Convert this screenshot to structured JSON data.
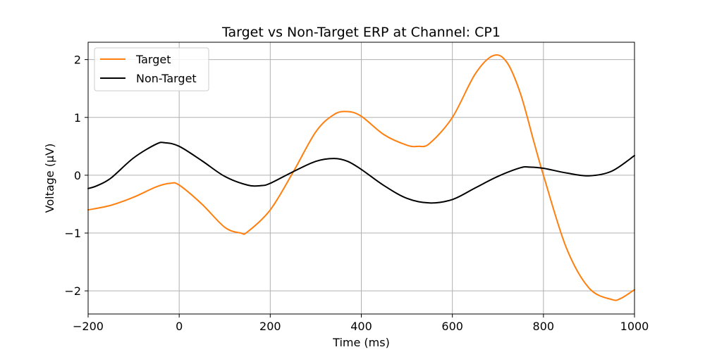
{
  "chart_data": {
    "type": "line",
    "title": "Target vs Non-Target ERP at Channel: CP1",
    "xlabel": "Time (ms)",
    "ylabel": "Voltage (μV)",
    "xlim": [
      -200,
      1000
    ],
    "ylim": [
      -2.4,
      2.3
    ],
    "xticks": [
      -200,
      0,
      200,
      400,
      600,
      800,
      1000
    ],
    "xtick_labels": [
      "−200",
      "0",
      "200",
      "400",
      "600",
      "800",
      "1000"
    ],
    "yticks": [
      -2,
      -1,
      0,
      1,
      2
    ],
    "ytick_labels": [
      "−2",
      "−1",
      "0",
      "1",
      "2"
    ],
    "grid": true,
    "legend_position": "top-left",
    "series": [
      {
        "name": "Target",
        "color": "#ff7f0e",
        "x": [
          -200,
          -150,
          -100,
          -50,
          -20,
          0,
          50,
          100,
          135,
          150,
          200,
          250,
          300,
          340,
          370,
          400,
          450,
          500,
          525,
          550,
          600,
          650,
          690,
          720,
          750,
          780,
          800,
          850,
          900,
          950,
          970,
          1000
        ],
        "y": [
          -0.6,
          -0.52,
          -0.38,
          -0.2,
          -0.14,
          -0.17,
          -0.5,
          -0.9,
          -1.0,
          -0.98,
          -0.6,
          0.05,
          0.75,
          1.05,
          1.1,
          1.02,
          0.7,
          0.52,
          0.5,
          0.55,
          1.0,
          1.75,
          2.07,
          1.95,
          1.4,
          0.55,
          0.0,
          -1.25,
          -1.95,
          -2.15,
          -2.13,
          -1.98
        ]
      },
      {
        "name": "Non-Target",
        "color": "#000000",
        "x": [
          -200,
          -180,
          -150,
          -100,
          -50,
          -30,
          0,
          50,
          100,
          150,
          180,
          200,
          250,
          300,
          340,
          370,
          400,
          450,
          500,
          550,
          600,
          650,
          700,
          750,
          770,
          800,
          850,
          900,
          950,
          1000
        ],
        "y": [
          -0.23,
          -0.18,
          -0.05,
          0.3,
          0.54,
          0.56,
          0.5,
          0.25,
          -0.02,
          -0.17,
          -0.18,
          -0.14,
          0.06,
          0.24,
          0.29,
          0.24,
          0.1,
          -0.18,
          -0.4,
          -0.48,
          -0.42,
          -0.22,
          -0.02,
          0.13,
          0.14,
          0.12,
          0.04,
          -0.01,
          0.07,
          0.34
        ]
      }
    ]
  }
}
